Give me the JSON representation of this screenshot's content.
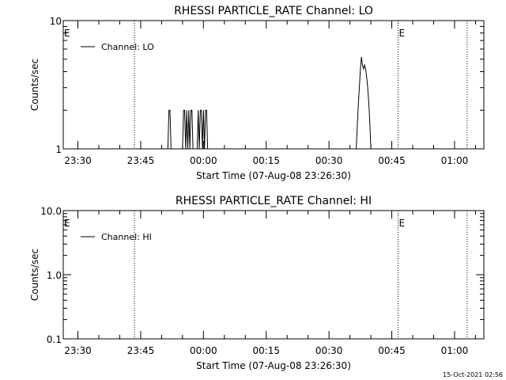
{
  "footer": {
    "timestamp": "15-Oct-2021 02:56"
  },
  "chart_data": [
    {
      "type": "line",
      "title": "RHESSI PARTICLE_RATE Channel: LO",
      "xlabel": "Start Time (07-Aug-08 23:26:30)",
      "ylabel": "Counts/sec",
      "yscale": "log",
      "ylim": [
        1,
        10
      ],
      "ytick_values": [
        1,
        10
      ],
      "ytick_labels": [
        "1",
        "10"
      ],
      "xlim": [
        "23:26:30",
        "01:07:00"
      ],
      "xtick_labels": [
        "23:30",
        "23:45",
        "00:00",
        "00:15",
        "00:30",
        "00:45",
        "01:00"
      ],
      "legend": {
        "entries": [
          "Channel: LO"
        ],
        "placement": "top-left"
      },
      "markers": [
        {
          "time": "23:43:30",
          "label": ""
        },
        {
          "time": "00:46:30",
          "label": "E"
        },
        {
          "time": "01:03:00",
          "label": ""
        }
      ],
      "left_label": "E",
      "series": [
        {
          "name": "Channel: LO",
          "points": [
            [
              "23:26:30",
              1
            ],
            [
              "23:51:30",
              1
            ],
            [
              "23:51:45",
              2
            ],
            [
              "23:52:00",
              2
            ],
            [
              "23:52:15",
              1
            ],
            [
              "23:55:00",
              1
            ],
            [
              "23:55:15",
              2
            ],
            [
              "23:55:30",
              2
            ],
            [
              "23:55:45",
              1
            ],
            [
              "23:56:00",
              2
            ],
            [
              "23:56:15",
              1
            ],
            [
              "23:56:30",
              2
            ],
            [
              "23:56:45",
              1
            ],
            [
              "23:57:00",
              2
            ],
            [
              "23:57:15",
              2
            ],
            [
              "23:57:30",
              1
            ],
            [
              "23:58:30",
              1
            ],
            [
              "23:58:45",
              2
            ],
            [
              "23:59:00",
              1
            ],
            [
              "23:59:15",
              2
            ],
            [
              "23:59:30",
              2
            ],
            [
              "23:59:45",
              1
            ],
            [
              "00:00:00",
              2
            ],
            [
              "00:00:15",
              1
            ],
            [
              "00:00:30",
              2
            ],
            [
              "00:00:45",
              2
            ],
            [
              "00:01:00",
              1
            ],
            [
              "00:36:30",
              1
            ],
            [
              "00:36:45",
              1.5
            ],
            [
              "00:37:00",
              2.2
            ],
            [
              "00:37:15",
              3
            ],
            [
              "00:37:30",
              4.2
            ],
            [
              "00:37:45",
              5.2
            ],
            [
              "00:38:00",
              4.5
            ],
            [
              "00:38:15",
              4.2
            ],
            [
              "00:38:30",
              4.5
            ],
            [
              "00:38:45",
              4.2
            ],
            [
              "00:39:00",
              3.6
            ],
            [
              "00:39:15",
              3
            ],
            [
              "00:39:30",
              2.3
            ],
            [
              "00:39:45",
              1.6
            ],
            [
              "00:40:00",
              1
            ],
            [
              "00:40:15",
              1
            ]
          ]
        }
      ]
    },
    {
      "type": "line",
      "title": "RHESSI PARTICLE_RATE Channel: HI",
      "xlabel": "Start Time (07-Aug-08 23:26:30)",
      "ylabel": "Counts/sec",
      "yscale": "log",
      "ylim": [
        0.1,
        10
      ],
      "ytick_values": [
        0.1,
        1,
        10
      ],
      "ytick_labels": [
        "0.1",
        "1.0",
        "10.0"
      ],
      "xlim": [
        "23:26:30",
        "01:07:00"
      ],
      "xtick_labels": [
        "23:30",
        "23:45",
        "00:00",
        "00:15",
        "00:30",
        "00:45",
        "01:00"
      ],
      "legend": {
        "entries": [
          "Channel: HI"
        ],
        "placement": "top-left"
      },
      "markers": [
        {
          "time": "23:43:30",
          "label": ""
        },
        {
          "time": "00:46:30",
          "label": "E"
        },
        {
          "time": "01:03:00",
          "label": ""
        }
      ],
      "left_label": "E",
      "series": [
        {
          "name": "Channel: HI",
          "points": []
        }
      ]
    }
  ]
}
